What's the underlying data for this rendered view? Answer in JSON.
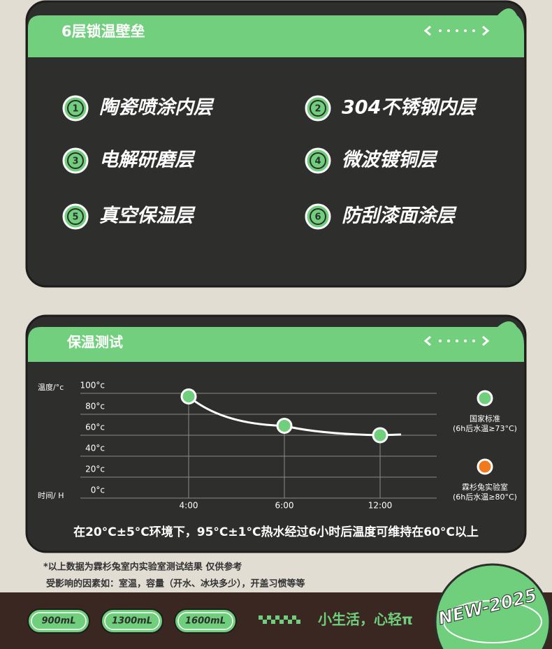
{
  "panel1": {
    "title": "6层锁温壁垒",
    "layers": [
      {
        "number": "1",
        "label": "陶瓷喷涂内层"
      },
      {
        "number": "2",
        "label": "304不锈钢内层"
      },
      {
        "number": "3",
        "label": "电解研磨层"
      },
      {
        "number": "4",
        "label": "微波镀铜层"
      },
      {
        "number": "5",
        "label": "真空保温层"
      },
      {
        "number": "6",
        "label": "防刮漆面涂层"
      }
    ]
  },
  "chart_data": {
    "type": "line",
    "title": "保温测试",
    "y_label": "温度/°c",
    "x_label": "时间/ H",
    "categories": [
      "4:00",
      "6:00",
      "12:00"
    ],
    "values": [
      97,
      69,
      60
    ],
    "color": "#ffffff",
    "ylim": [
      0,
      100
    ],
    "yticks": [
      {
        "value": 0,
        "label": "0°c"
      },
      {
        "value": 20,
        "label": "20°c"
      },
      {
        "value": 40,
        "label": "40°c"
      },
      {
        "value": 60,
        "label": "60°c"
      },
      {
        "value": 80,
        "label": "80°c"
      },
      {
        "value": 100,
        "label": "100°c"
      }
    ],
    "grid": true,
    "legend": [
      {
        "name": "国家标准",
        "note": "(6h后水温≥73°C)",
        "color": "#6fcf7c"
      },
      {
        "name": "霖杉兔实验室",
        "note": "(6h后水温≥80°C)",
        "color": "#f07a1c"
      }
    ],
    "caption": "在20°C±5°C环境下，95°C±1°C热水经过6小时后温度可维持在60°C以上"
  },
  "notes": [
    "*以上数据为霖杉兔室内实验室测试结果 仅供参考",
    "受影响的因素如：室温，容量（开水、冰块多少），开盖习惯等等"
  ],
  "footer": {
    "sizes": [
      "900mL",
      "1300mL",
      "1600mL"
    ],
    "slogan": "小生活，心轻π",
    "badge": "NEW-2025"
  }
}
